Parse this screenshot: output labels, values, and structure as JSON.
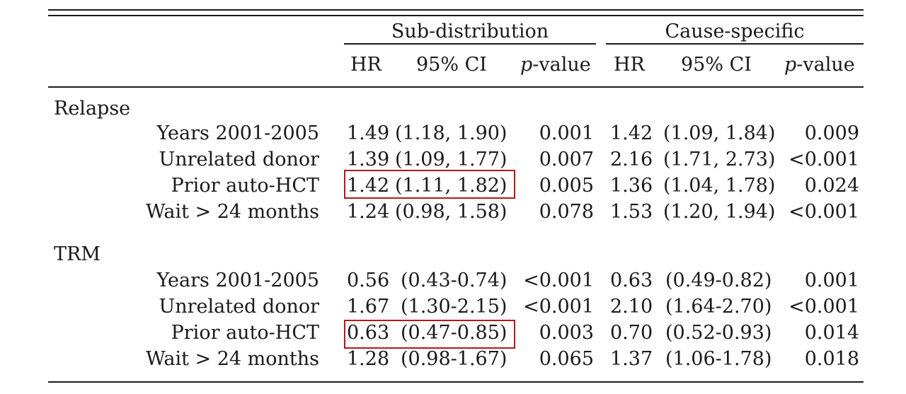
{
  "table": {
    "group_headers": {
      "sub": "Sub-distribution",
      "cause": "Cause-specific"
    },
    "col_headers": {
      "hr": "HR",
      "ci": "95% CI",
      "p": "p",
      "p_suffix": "-value"
    },
    "sections": [
      {
        "name": "Relapse",
        "rows": [
          {
            "label": "Years 2001-2005",
            "sd_hr": "1.49",
            "sd_ci": "(1.18, 1.90)",
            "sd_p": "0.001",
            "cs_hr": "1.42",
            "cs_ci": "(1.09, 1.84)",
            "cs_p": "0.009"
          },
          {
            "label": "Unrelated donor",
            "sd_hr": "1.39",
            "sd_ci": "(1.09, 1.77)",
            "sd_p": "0.007",
            "cs_hr": "2.16",
            "cs_ci": "(1.71, 2.73)",
            "cs_p": "<0.001"
          },
          {
            "label": "Prior auto-HCT",
            "sd_hr": "1.42",
            "sd_ci": "(1.11, 1.82)",
            "sd_p": "0.005",
            "cs_hr": "1.36",
            "cs_ci": "(1.04, 1.78)",
            "cs_p": "0.024",
            "highlight": true
          },
          {
            "label": "Wait > 24 months",
            "sd_hr": "1.24",
            "sd_ci": "(0.98, 1.58)",
            "sd_p": "0.078",
            "cs_hr": "1.53",
            "cs_ci": "(1.20, 1.94)",
            "cs_p": "<0.001"
          }
        ]
      },
      {
        "name": "TRM",
        "rows": [
          {
            "label": "Years 2001-2005",
            "sd_hr": "0.56",
            "sd_ci": "(0.43-0.74)",
            "sd_p": "<0.001",
            "cs_hr": "0.63",
            "cs_ci": "(0.49-0.82)",
            "cs_p": "0.001"
          },
          {
            "label": "Unrelated donor",
            "sd_hr": "1.67",
            "sd_ci": "(1.30-2.15)",
            "sd_p": "<0.001",
            "cs_hr": "2.10",
            "cs_ci": "(1.64-2.70)",
            "cs_p": "<0.001"
          },
          {
            "label": "Prior auto-HCT",
            "sd_hr": "0.63",
            "sd_ci": "(0.47-0.85)",
            "sd_p": "0.003",
            "cs_hr": "0.70",
            "cs_ci": "(0.52-0.93)",
            "cs_p": "0.014",
            "highlight": true
          },
          {
            "label": "Wait > 24 months",
            "sd_hr": "1.28",
            "sd_ci": "(0.98-1.67)",
            "sd_p": "0.065",
            "cs_hr": "1.37",
            "cs_ci": "(1.06-1.78)",
            "cs_p": "0.018"
          }
        ]
      }
    ]
  },
  "colors": {
    "text": "#1a1a1a",
    "highlight_box": "#b41818",
    "background": "#ffffff"
  }
}
